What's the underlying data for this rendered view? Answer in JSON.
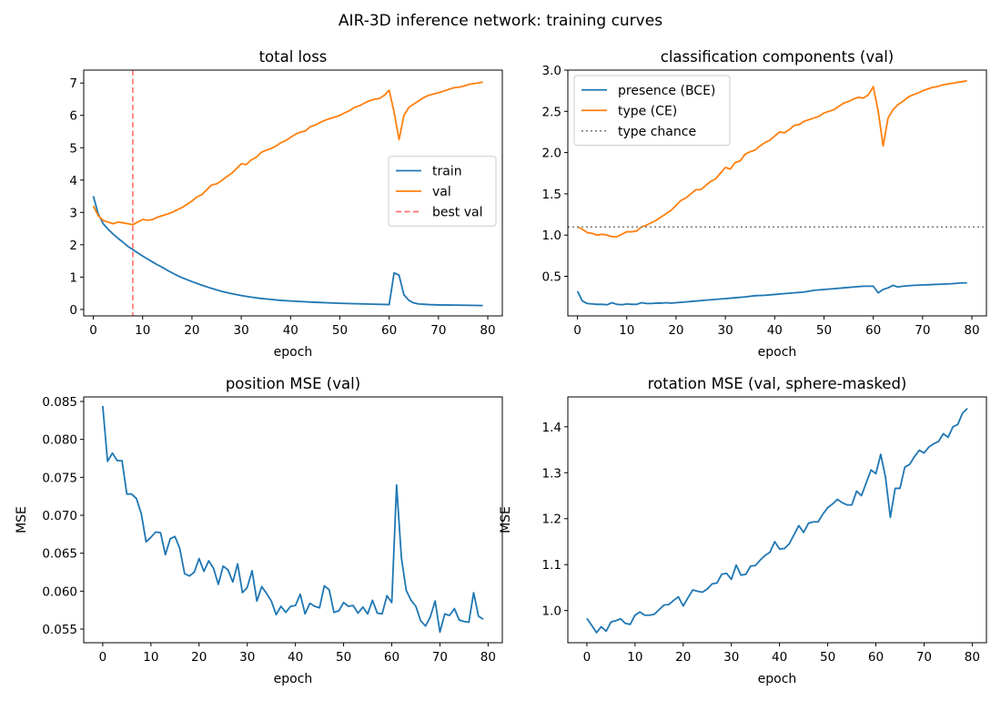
{
  "figure": {
    "title": "AIR-3D inference network: training curves"
  },
  "chart_data": [
    {
      "type": "line",
      "title": "total loss",
      "xlabel": "epoch",
      "ylabel": "",
      "xlim": [
        -1.95,
        82.95
      ],
      "ylim": [
        -0.2,
        7.4
      ],
      "xticks": [
        0,
        10,
        20,
        30,
        40,
        50,
        60,
        70,
        80
      ],
      "yticks": [
        0,
        1,
        2,
        3,
        4,
        5,
        6,
        7
      ],
      "ytick_decimals": 0,
      "legend_position": "center-right",
      "series": [
        {
          "name": "train",
          "color": "#1f77b4",
          "style": "solid",
          "x": [
            0,
            1,
            2,
            3,
            4,
            5,
            6,
            7,
            8,
            9,
            10,
            11,
            12,
            13,
            14,
            15,
            16,
            17,
            18,
            19,
            20,
            22,
            24,
            26,
            28,
            30,
            32,
            34,
            36,
            38,
            40,
            45,
            50,
            55,
            60,
            61,
            62,
            63,
            64,
            65,
            66,
            67,
            68,
            70,
            75,
            79
          ],
          "y": [
            3.5,
            2.95,
            2.65,
            2.48,
            2.33,
            2.2,
            2.08,
            1.95,
            1.85,
            1.75,
            1.65,
            1.56,
            1.47,
            1.38,
            1.3,
            1.21,
            1.13,
            1.05,
            0.98,
            0.92,
            0.86,
            0.75,
            0.65,
            0.56,
            0.49,
            0.43,
            0.38,
            0.34,
            0.31,
            0.28,
            0.26,
            0.22,
            0.19,
            0.17,
            0.15,
            1.13,
            1.06,
            0.45,
            0.28,
            0.2,
            0.17,
            0.16,
            0.15,
            0.14,
            0.13,
            0.12
          ]
        },
        {
          "name": "val",
          "color": "#ff7f0e",
          "style": "solid",
          "x": [
            0,
            1,
            2,
            3,
            4,
            5,
            6,
            7,
            8,
            9,
            10,
            11,
            12,
            13,
            14,
            15,
            16,
            17,
            18,
            19,
            20,
            21,
            22,
            23,
            24,
            25,
            26,
            27,
            28,
            29,
            30,
            31,
            32,
            33,
            34,
            35,
            36,
            37,
            38,
            39,
            40,
            41,
            42,
            43,
            44,
            45,
            46,
            47,
            48,
            49,
            50,
            51,
            52,
            53,
            54,
            55,
            56,
            57,
            58,
            59,
            60,
            61,
            62,
            63,
            64,
            65,
            66,
            67,
            68,
            69,
            70,
            71,
            72,
            73,
            74,
            75,
            76,
            77,
            78,
            79
          ],
          "y": [
            3.2,
            2.9,
            2.75,
            2.7,
            2.65,
            2.7,
            2.68,
            2.65,
            2.62,
            2.7,
            2.78,
            2.76,
            2.78,
            2.85,
            2.9,
            2.95,
            3.0,
            3.08,
            3.15,
            3.25,
            3.35,
            3.48,
            3.55,
            3.7,
            3.85,
            3.88,
            3.98,
            4.1,
            4.2,
            4.35,
            4.5,
            4.48,
            4.62,
            4.7,
            4.85,
            4.92,
            4.97,
            5.05,
            5.15,
            5.22,
            5.32,
            5.42,
            5.48,
            5.52,
            5.65,
            5.7,
            5.78,
            5.85,
            5.9,
            5.95,
            6.0,
            6.08,
            6.15,
            6.25,
            6.3,
            6.38,
            6.45,
            6.5,
            6.52,
            6.62,
            6.78,
            6.1,
            5.25,
            6.0,
            6.25,
            6.35,
            6.45,
            6.55,
            6.62,
            6.66,
            6.7,
            6.75,
            6.8,
            6.85,
            6.87,
            6.9,
            6.95,
            6.98,
            7.0,
            7.03
          ]
        },
        {
          "name": "best val",
          "color": "#ff6f6f",
          "style": "dashed",
          "vline_x": 8
        }
      ]
    },
    {
      "type": "line",
      "title": "classification components (val)",
      "xlabel": "epoch",
      "ylabel": "",
      "xlim": [
        -1.95,
        82.95
      ],
      "ylim": [
        0.02,
        3.0
      ],
      "xticks": [
        0,
        10,
        20,
        30,
        40,
        50,
        60,
        70,
        80
      ],
      "yticks": [
        0.5,
        1.0,
        1.5,
        2.0,
        2.5,
        3.0
      ],
      "ytick_decimals": 1,
      "legend_position": "top-left",
      "series": [
        {
          "name": "presence (BCE)",
          "color": "#1f77b4",
          "style": "solid",
          "x": [
            0,
            1,
            2,
            3,
            4,
            5,
            6,
            7,
            8,
            9,
            10,
            11,
            12,
            13,
            14,
            15,
            16,
            17,
            18,
            19,
            20,
            22,
            24,
            26,
            28,
            30,
            32,
            34,
            36,
            38,
            40,
            42,
            44,
            46,
            48,
            50,
            52,
            54,
            56,
            58,
            60,
            61,
            62,
            63,
            64,
            65,
            66,
            68,
            70,
            72,
            74,
            76,
            78,
            79
          ],
          "y": [
            0.32,
            0.2,
            0.17,
            0.165,
            0.16,
            0.16,
            0.155,
            0.18,
            0.16,
            0.155,
            0.165,
            0.16,
            0.16,
            0.18,
            0.17,
            0.17,
            0.175,
            0.175,
            0.18,
            0.175,
            0.18,
            0.19,
            0.2,
            0.21,
            0.22,
            0.23,
            0.24,
            0.25,
            0.265,
            0.27,
            0.28,
            0.29,
            0.3,
            0.31,
            0.33,
            0.34,
            0.35,
            0.36,
            0.37,
            0.38,
            0.38,
            0.3,
            0.34,
            0.36,
            0.39,
            0.37,
            0.38,
            0.39,
            0.395,
            0.4,
            0.405,
            0.41,
            0.42,
            0.42
          ]
        },
        {
          "name": "type (CE)",
          "color": "#ff7f0e",
          "style": "solid",
          "x": [
            0,
            1,
            2,
            3,
            4,
            5,
            6,
            7,
            8,
            9,
            10,
            11,
            12,
            13,
            14,
            15,
            16,
            17,
            18,
            19,
            20,
            21,
            22,
            23,
            24,
            25,
            26,
            27,
            28,
            29,
            30,
            31,
            32,
            33,
            34,
            35,
            36,
            37,
            38,
            39,
            40,
            41,
            42,
            43,
            44,
            45,
            46,
            47,
            48,
            49,
            50,
            51,
            52,
            53,
            54,
            55,
            56,
            57,
            58,
            59,
            60,
            61,
            62,
            63,
            64,
            65,
            66,
            67,
            68,
            69,
            70,
            71,
            72,
            73,
            74,
            75,
            76,
            77,
            78,
            79
          ],
          "y": [
            1.1,
            1.07,
            1.03,
            1.02,
            1.0,
            1.01,
            1.0,
            0.98,
            0.98,
            1.01,
            1.04,
            1.04,
            1.05,
            1.1,
            1.12,
            1.15,
            1.18,
            1.22,
            1.26,
            1.3,
            1.36,
            1.42,
            1.45,
            1.5,
            1.55,
            1.55,
            1.6,
            1.65,
            1.68,
            1.75,
            1.82,
            1.8,
            1.88,
            1.9,
            1.98,
            2.01,
            2.03,
            2.08,
            2.12,
            2.15,
            2.2,
            2.25,
            2.24,
            2.28,
            2.33,
            2.34,
            2.38,
            2.4,
            2.42,
            2.44,
            2.48,
            2.5,
            2.52,
            2.56,
            2.6,
            2.62,
            2.65,
            2.67,
            2.66,
            2.7,
            2.8,
            2.5,
            2.08,
            2.42,
            2.52,
            2.58,
            2.62,
            2.67,
            2.7,
            2.72,
            2.75,
            2.77,
            2.79,
            2.8,
            2.82,
            2.83,
            2.84,
            2.85,
            2.86,
            2.87
          ]
        },
        {
          "name": "type chance",
          "color": "#808080",
          "style": "dotted",
          "hline_y": 1.0986
        }
      ]
    },
    {
      "type": "line",
      "title": "position MSE (val)",
      "xlabel": "epoch",
      "ylabel": "MSE",
      "xlim": [
        -3.95,
        82.95
      ],
      "ylim": [
        0.0532,
        0.0856
      ],
      "xticks": [
        0,
        10,
        20,
        30,
        40,
        50,
        60,
        70,
        80
      ],
      "yticks": [
        0.055,
        0.06,
        0.065,
        0.07,
        0.075,
        0.08,
        0.085
      ],
      "ytick_decimals": 3,
      "series": [
        {
          "name": "",
          "color": "#1f77b4",
          "style": "solid",
          "x": [
            0,
            1,
            2,
            3,
            4,
            5,
            6,
            7,
            8,
            9,
            10,
            11,
            12,
            13,
            14,
            15,
            16,
            17,
            18,
            19,
            20,
            21,
            22,
            23,
            24,
            25,
            26,
            27,
            28,
            29,
            30,
            31,
            32,
            33,
            34,
            35,
            36,
            37,
            38,
            39,
            40,
            41,
            42,
            43,
            44,
            45,
            46,
            47,
            48,
            49,
            50,
            51,
            52,
            53,
            54,
            55,
            56,
            57,
            58,
            59,
            60,
            61,
            62,
            63,
            64,
            65,
            66,
            67,
            68,
            69,
            70,
            71,
            72,
            73,
            74,
            75,
            76,
            77,
            78,
            79
          ],
          "y": [
            0.0844,
            0.0771,
            0.0782,
            0.0772,
            0.0772,
            0.0728,
            0.0728,
            0.0722,
            0.0702,
            0.0665,
            0.0671,
            0.0678,
            0.0677,
            0.0648,
            0.0669,
            0.0672,
            0.0656,
            0.0623,
            0.062,
            0.0625,
            0.0643,
            0.0626,
            0.064,
            0.063,
            0.0609,
            0.0633,
            0.0628,
            0.0612,
            0.0636,
            0.0598,
            0.0605,
            0.0627,
            0.0587,
            0.0606,
            0.0597,
            0.0587,
            0.0569,
            0.058,
            0.0572,
            0.058,
            0.0581,
            0.0596,
            0.057,
            0.0584,
            0.058,
            0.0578,
            0.0607,
            0.0602,
            0.0572,
            0.0574,
            0.0585,
            0.058,
            0.0581,
            0.0571,
            0.0579,
            0.057,
            0.0588,
            0.0571,
            0.057,
            0.0594,
            0.0585,
            0.074,
            0.0644,
            0.0601,
            0.0588,
            0.058,
            0.0561,
            0.0554,
            0.0566,
            0.0587,
            0.0546,
            0.057,
            0.0568,
            0.0577,
            0.0562,
            0.056,
            0.0559,
            0.0598,
            0.0567,
            0.0563
          ]
        }
      ]
    },
    {
      "type": "line",
      "title": "rotation MSE (val, sphere-masked)",
      "xlabel": "epoch",
      "ylabel": "MSE",
      "xlim": [
        -3.95,
        82.95
      ],
      "ylim": [
        0.93,
        1.465
      ],
      "xticks": [
        0,
        10,
        20,
        30,
        40,
        50,
        60,
        70,
        80
      ],
      "yticks": [
        1.0,
        1.1,
        1.2,
        1.3,
        1.4
      ],
      "ytick_decimals": 1,
      "series": [
        {
          "name": "",
          "color": "#1f77b4",
          "style": "solid",
          "x": [
            0,
            1,
            2,
            3,
            4,
            5,
            6,
            7,
            8,
            9,
            10,
            11,
            12,
            13,
            14,
            15,
            16,
            17,
            18,
            19,
            20,
            21,
            22,
            23,
            24,
            25,
            26,
            27,
            28,
            29,
            30,
            31,
            32,
            33,
            34,
            35,
            36,
            37,
            38,
            39,
            40,
            41,
            42,
            43,
            44,
            45,
            46,
            47,
            48,
            49,
            50,
            51,
            52,
            53,
            54,
            55,
            56,
            57,
            58,
            59,
            60,
            61,
            62,
            63,
            64,
            65,
            66,
            67,
            68,
            69,
            70,
            71,
            72,
            73,
            74,
            75,
            76,
            77,
            78,
            79
          ],
          "y": [
            0.983,
            0.968,
            0.952,
            0.965,
            0.955,
            0.975,
            0.978,
            0.982,
            0.972,
            0.97,
            0.99,
            0.997,
            0.99,
            0.99,
            0.992,
            1.002,
            1.012,
            1.013,
            1.022,
            1.03,
            1.01,
            1.028,
            1.045,
            1.042,
            1.04,
            1.047,
            1.058,
            1.06,
            1.079,
            1.081,
            1.068,
            1.099,
            1.077,
            1.079,
            1.097,
            1.098,
            1.11,
            1.12,
            1.127,
            1.15,
            1.134,
            1.135,
            1.145,
            1.165,
            1.185,
            1.17,
            1.19,
            1.193,
            1.193,
            1.21,
            1.224,
            1.232,
            1.242,
            1.235,
            1.23,
            1.23,
            1.26,
            1.25,
            1.278,
            1.306,
            1.298,
            1.34,
            1.29,
            1.203,
            1.266,
            1.266,
            1.312,
            1.318,
            1.335,
            1.349,
            1.343,
            1.356,
            1.363,
            1.368,
            1.385,
            1.377,
            1.4,
            1.405,
            1.43,
            1.44
          ]
        }
      ]
    }
  ]
}
